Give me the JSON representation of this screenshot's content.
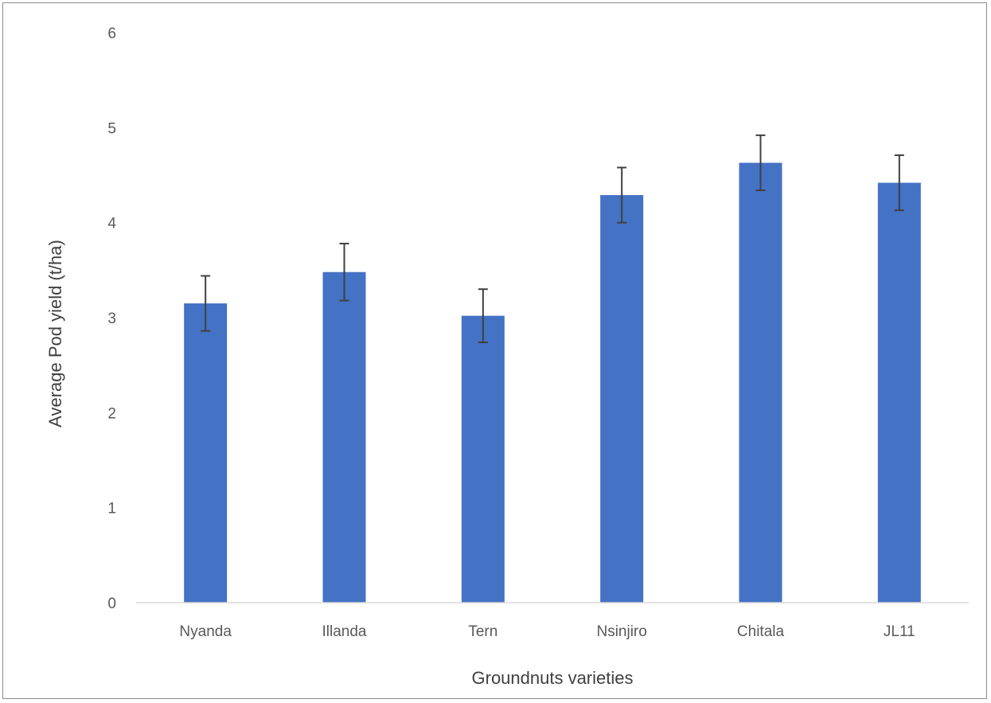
{
  "chart_data": {
    "type": "bar",
    "title": "",
    "xlabel": "Groundnuts varieties",
    "ylabel": "Average Pod yield (t/ha)",
    "categories": [
      "Nyanda",
      "Illanda",
      "Tern",
      "Nsinjiro",
      "Chitala",
      "JL11"
    ],
    "values": [
      3.15,
      3.48,
      3.02,
      4.29,
      4.63,
      4.42
    ],
    "error": [
      0.29,
      0.3,
      0.28,
      0.29,
      0.29,
      0.29
    ],
    "ylim": [
      0,
      6
    ],
    "yticks": [
      "0",
      "1",
      "2",
      "3",
      "4",
      "5",
      "6"
    ],
    "grid": false,
    "legend": "none",
    "bar_color": "#4472C4",
    "error_bar_color": "#404040"
  }
}
